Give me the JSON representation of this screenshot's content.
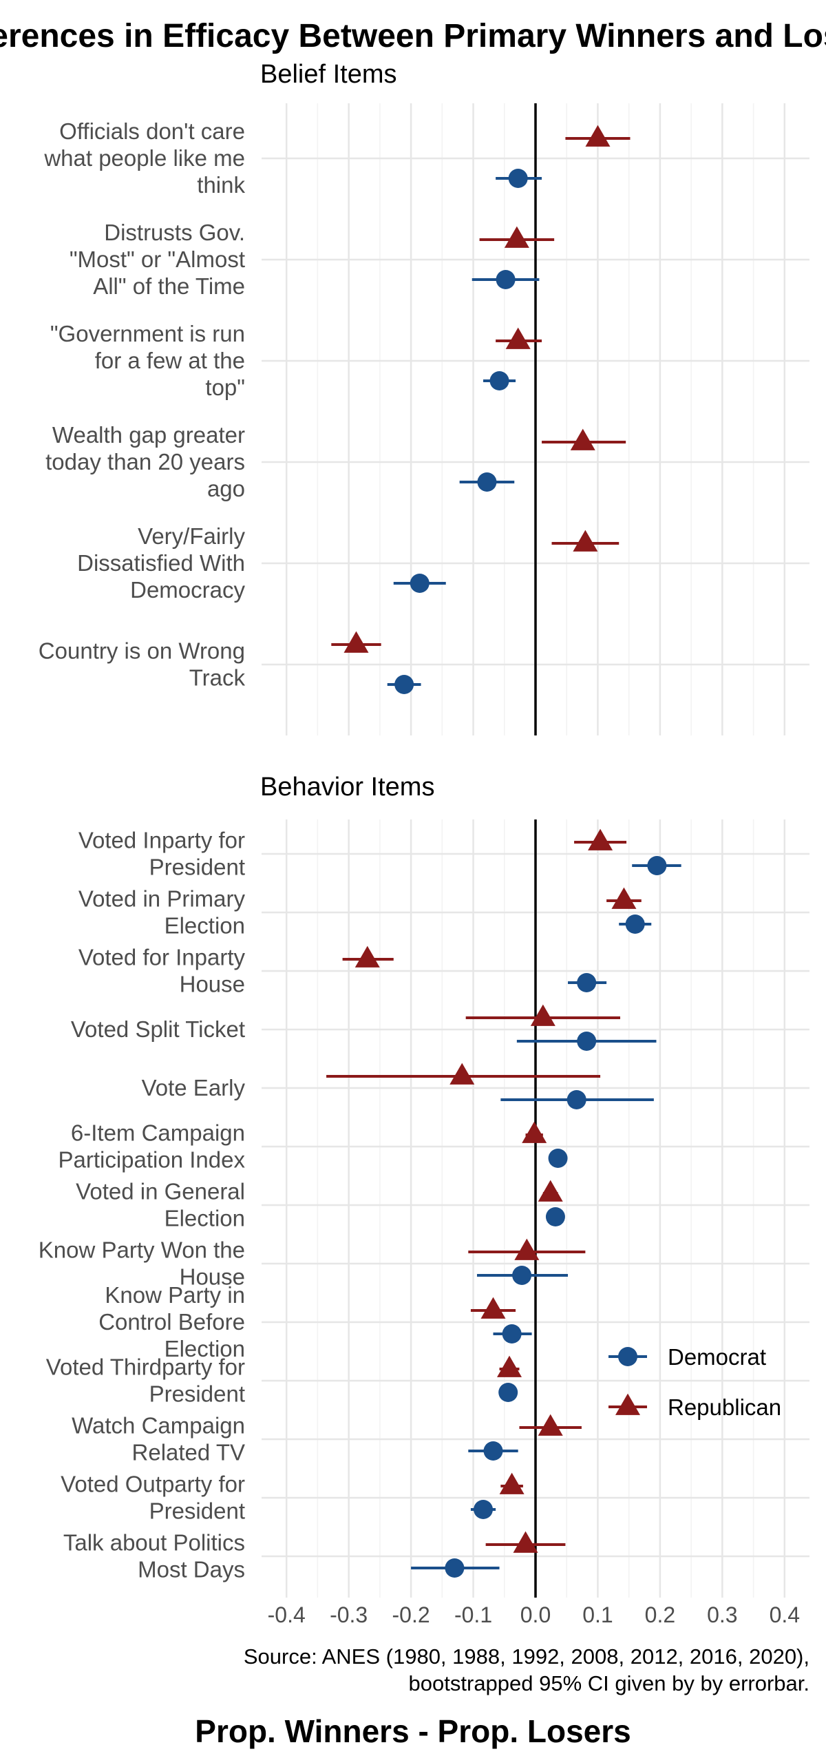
{
  "chart_data": {
    "type": "scatter",
    "title": "Differences in Efficacy Between Primary Winners and Losers",
    "xlabel": "Prop. Winners - Prop. Losers",
    "caption": [
      "Source: ANES (1980, 1988, 1992, 2008, 2012, 2016, 2020),",
      "bootstrapped 95% CI given by by errorbar."
    ],
    "xlim": [
      -0.44,
      0.44
    ],
    "x_ticks": [
      -0.4,
      -0.3,
      -0.2,
      -0.1,
      0.0,
      0.1,
      0.2,
      0.3,
      0.4
    ],
    "x_tick_labels": [
      "-0.4",
      "-0.3",
      "-0.2",
      "-0.1",
      "0.0",
      "0.1",
      "0.2",
      "0.3",
      "0.4"
    ],
    "reference_line_x": 0,
    "grid": true,
    "legend": {
      "position": "right",
      "entries": [
        {
          "name": "Democrat",
          "color": "#1a4f8b",
          "marker": "circle"
        },
        {
          "name": "Republican",
          "color": "#8b1a1a",
          "marker": "triangle"
        }
      ]
    },
    "panels": [
      {
        "title": "Belief Items",
        "items": [
          {
            "label": [
              "Officials don't care",
              "what people like me",
              "think"
            ],
            "republican": {
              "est": 0.1,
              "lo": 0.048,
              "hi": 0.152
            },
            "democrat": {
              "est": -0.028,
              "lo": -0.064,
              "hi": 0.01
            }
          },
          {
            "label": [
              "Distrusts Gov.",
              "\"Most\" or \"Almost",
              "All\" of the Time"
            ],
            "republican": {
              "est": -0.03,
              "lo": -0.09,
              "hi": 0.03
            },
            "democrat": {
              "est": -0.048,
              "lo": -0.102,
              "hi": 0.006
            }
          },
          {
            "label": [
              "\"Government is run",
              "for a few at the",
              "top\""
            ],
            "republican": {
              "est": -0.028,
              "lo": -0.064,
              "hi": 0.01
            },
            "democrat": {
              "est": -0.058,
              "lo": -0.084,
              "hi": -0.032
            }
          },
          {
            "label": [
              "Wealth gap greater",
              "today than 20 years",
              "ago"
            ],
            "republican": {
              "est": 0.076,
              "lo": 0.01,
              "hi": 0.145
            },
            "democrat": {
              "est": -0.078,
              "lo": -0.122,
              "hi": -0.034
            }
          },
          {
            "label": [
              "Very/Fairly",
              "Dissatisfied With",
              "Democracy"
            ],
            "republican": {
              "est": 0.08,
              "lo": 0.026,
              "hi": 0.134
            },
            "democrat": {
              "est": -0.186,
              "lo": -0.228,
              "hi": -0.144
            }
          },
          {
            "label": [
              "Country is on Wrong",
              "Track"
            ],
            "republican": {
              "est": -0.288,
              "lo": -0.328,
              "hi": -0.248
            },
            "democrat": {
              "est": -0.211,
              "lo": -0.238,
              "hi": -0.184
            }
          }
        ]
      },
      {
        "title": "Behavior Items",
        "items": [
          {
            "label": [
              "Voted Inparty for",
              "President"
            ],
            "republican": {
              "est": 0.104,
              "lo": 0.062,
              "hi": 0.146
            },
            "democrat": {
              "est": 0.195,
              "lo": 0.155,
              "hi": 0.234
            }
          },
          {
            "label": [
              "Voted in Primary",
              "Election"
            ],
            "republican": {
              "est": 0.142,
              "lo": 0.114,
              "hi": 0.17
            },
            "democrat": {
              "est": 0.16,
              "lo": 0.134,
              "hi": 0.186
            }
          },
          {
            "label": [
              "Voted for Inparty",
              "House"
            ],
            "republican": {
              "est": -0.27,
              "lo": -0.31,
              "hi": -0.228
            },
            "democrat": {
              "est": 0.082,
              "lo": 0.052,
              "hi": 0.114
            }
          },
          {
            "label": [
              "Voted Split Ticket"
            ],
            "republican": {
              "est": 0.012,
              "lo": -0.112,
              "hi": 0.136
            },
            "democrat": {
              "est": 0.082,
              "lo": -0.03,
              "hi": 0.194
            }
          },
          {
            "label": [
              "Vote Early"
            ],
            "republican": {
              "est": -0.118,
              "lo": -0.336,
              "hi": 0.104
            },
            "democrat": {
              "est": 0.066,
              "lo": -0.056,
              "hi": 0.19
            }
          },
          {
            "label": [
              "6-Item Campaign",
              "Participation Index"
            ],
            "republican": {
              "est": -0.002,
              "lo": -0.016,
              "hi": 0.012
            },
            "democrat": {
              "est": 0.036,
              "lo": 0.024,
              "hi": 0.048
            }
          },
          {
            "label": [
              "Voted in General",
              "Election"
            ],
            "republican": {
              "est": 0.024,
              "lo": 0.012,
              "hi": 0.036
            },
            "democrat": {
              "est": 0.032,
              "lo": 0.022,
              "hi": 0.042
            }
          },
          {
            "label": [
              "Know Party Won the",
              "House"
            ],
            "republican": {
              "est": -0.014,
              "lo": -0.108,
              "hi": 0.08
            },
            "democrat": {
              "est": -0.022,
              "lo": -0.094,
              "hi": 0.052
            }
          },
          {
            "label": [
              "Know Party in",
              "Control Before",
              "Election"
            ],
            "republican": {
              "est": -0.068,
              "lo": -0.104,
              "hi": -0.032
            },
            "democrat": {
              "est": -0.038,
              "lo": -0.068,
              "hi": -0.006
            }
          },
          {
            "label": [
              "Voted Thirdparty for",
              "President"
            ],
            "republican": {
              "est": -0.042,
              "lo": -0.058,
              "hi": -0.026
            },
            "democrat": {
              "est": -0.044,
              "lo": -0.056,
              "hi": -0.032
            }
          },
          {
            "label": [
              "Watch Campaign",
              "Related TV"
            ],
            "republican": {
              "est": 0.024,
              "lo": -0.026,
              "hi": 0.074
            },
            "democrat": {
              "est": -0.068,
              "lo": -0.108,
              "hi": -0.028
            }
          },
          {
            "label": [
              "Voted Outparty for",
              "President"
            ],
            "republican": {
              "est": -0.038,
              "lo": -0.056,
              "hi": -0.02
            },
            "democrat": {
              "est": -0.084,
              "lo": -0.104,
              "hi": -0.064
            }
          },
          {
            "label": [
              "Talk about Politics",
              "Most Days"
            ],
            "republican": {
              "est": -0.016,
              "lo": -0.08,
              "hi": 0.048
            },
            "democrat": {
              "est": -0.13,
              "lo": -0.2,
              "hi": -0.058
            }
          }
        ]
      }
    ]
  }
}
